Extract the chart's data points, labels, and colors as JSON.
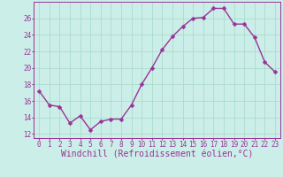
{
  "x": [
    0,
    1,
    2,
    3,
    4,
    5,
    6,
    7,
    8,
    9,
    10,
    11,
    12,
    13,
    14,
    15,
    16,
    17,
    18,
    19,
    20,
    21,
    22,
    23
  ],
  "y": [
    17.2,
    15.5,
    15.3,
    13.3,
    14.2,
    12.5,
    13.5,
    13.8,
    13.8,
    15.5,
    18.0,
    20.0,
    22.2,
    23.8,
    25.0,
    26.0,
    26.1,
    27.2,
    27.2,
    25.3,
    25.3,
    23.7,
    20.7,
    19.5
  ],
  "line_color": "#993399",
  "marker": "D",
  "marker_size": 2.5,
  "bg_color": "#cceee8",
  "grid_color": "#aaddcc",
  "xlabel": "Windchill (Refroidissement éolien,°C)",
  "ylabel": "",
  "title": "",
  "xlim": [
    -0.5,
    23.5
  ],
  "ylim": [
    11.5,
    28.0
  ],
  "yticks": [
    12,
    14,
    16,
    18,
    20,
    22,
    24,
    26
  ],
  "xticks": [
    0,
    1,
    2,
    3,
    4,
    5,
    6,
    7,
    8,
    9,
    10,
    11,
    12,
    13,
    14,
    15,
    16,
    17,
    18,
    19,
    20,
    21,
    22,
    23
  ],
  "tick_color": "#993399",
  "tick_fontsize": 5.5,
  "xlabel_fontsize": 7.0,
  "line_width": 1.0
}
